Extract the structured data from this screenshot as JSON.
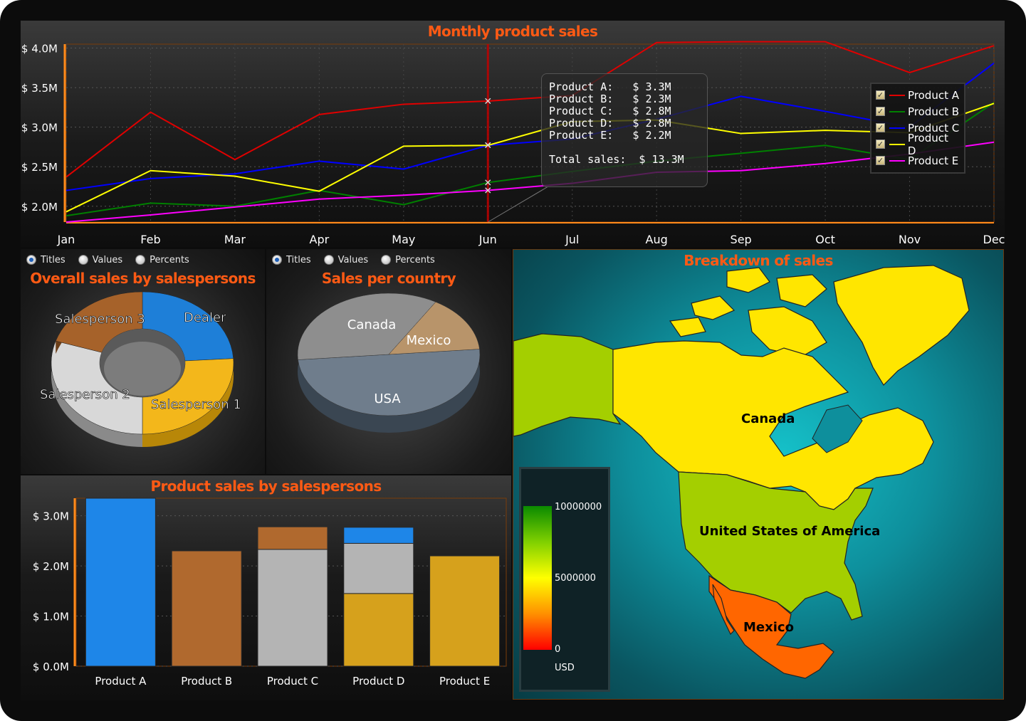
{
  "colors": {
    "title": "#ff5a14",
    "product_a": "#e00000",
    "product_b": "#008000",
    "product_c": "#0000ff",
    "product_d": "#ffff00",
    "product_e": "#ff00ff"
  },
  "line_chart": {
    "title": "Monthly product sales",
    "legend": [
      "Product A",
      "Product B",
      "Product C",
      "Product D",
      "Product E"
    ],
    "tooltip": {
      "lines": [
        "Product A:   $ 3.3M",
        "Product B:   $ 2.3M",
        "Product C:   $ 2.8M",
        "Product D:   $ 2.8M",
        "Product E:   $ 2.2M"
      ],
      "total": "Total sales:  $ 13.3M"
    },
    "y_ticks": [
      "$ 2.0M",
      "$ 2.5M",
      "$ 3.0M",
      "$ 3.5M",
      "$ 4.0M"
    ]
  },
  "donut": {
    "title": "Overall sales by salespersons",
    "radio": [
      "Titles",
      "Values",
      "Percents"
    ],
    "labels": [
      "Dealer",
      "Salesperson 1",
      "Salesperson 2",
      "Salesperson 3"
    ]
  },
  "pie": {
    "title": "Sales per country",
    "radio": [
      "Titles",
      "Values",
      "Percents"
    ],
    "labels": [
      "USA",
      "Canada",
      "Mexico"
    ]
  },
  "bars": {
    "title": "Product sales by salespersons",
    "y_ticks": [
      "$ 0.0M",
      "$ 1.0M",
      "$ 2.0M",
      "$ 3.0M"
    ]
  },
  "map": {
    "title": "Breakdown of sales",
    "countries": [
      "Canada",
      "United States of America",
      "Mexico"
    ],
    "scale_labels": [
      "10000000",
      "5000000",
      "0"
    ],
    "unit": "USD"
  },
  "chart_data": [
    {
      "type": "line",
      "title": "Monthly product sales",
      "categories": [
        "Jan",
        "Feb",
        "Mar",
        "Apr",
        "May",
        "Jun",
        "Jul",
        "Aug",
        "Sep",
        "Oct",
        "Nov",
        "Dec"
      ],
      "ylim": [
        1.8,
        4.05
      ],
      "grid": true,
      "legend_position": "top-right",
      "series": [
        {
          "name": "Product A",
          "values": [
            2.37,
            3.19,
            2.59,
            3.16,
            3.29,
            3.33,
            3.4,
            4.07,
            4.08,
            4.08,
            3.69,
            4.03
          ]
        },
        {
          "name": "Product B",
          "values": [
            1.88,
            2.04,
            2.0,
            2.2,
            2.02,
            2.3,
            2.44,
            2.57,
            2.67,
            2.77,
            2.59,
            3.31
          ]
        },
        {
          "name": "Product C",
          "values": [
            2.2,
            2.35,
            2.41,
            2.57,
            2.47,
            2.77,
            2.85,
            3.1,
            3.39,
            3.2,
            3.0,
            3.81
          ]
        },
        {
          "name": "Product D",
          "values": [
            1.93,
            2.45,
            2.38,
            2.19,
            2.76,
            2.77,
            3.07,
            3.09,
            2.92,
            2.96,
            2.93,
            3.3
          ]
        },
        {
          "name": "Product E",
          "values": [
            1.8,
            1.89,
            1.99,
            2.09,
            2.14,
            2.2,
            2.29,
            2.43,
            2.45,
            2.54,
            2.66,
            2.81
          ]
        }
      ]
    },
    {
      "type": "pie",
      "title": "Overall sales by salespersons",
      "categories": [
        "Dealer",
        "Salesperson 1",
        "Salesperson 2",
        "Salesperson 3"
      ],
      "values": [
        24,
        26,
        30,
        20
      ]
    },
    {
      "type": "pie",
      "title": "Sales per country",
      "categories": [
        "USA",
        "Canada",
        "Mexico"
      ],
      "values": [
        50,
        35,
        15
      ]
    },
    {
      "type": "bar",
      "title": "Product sales by salespersons",
      "categories": [
        "Product A",
        "Product B",
        "Product C",
        "Product D",
        "Product E"
      ],
      "ylim": [
        0,
        3.35
      ],
      "series": [
        {
          "name": "Dealer",
          "values": [
            3.4,
            0,
            0,
            0.32,
            0
          ]
        },
        {
          "name": "Salesperson 1",
          "values": [
            0,
            0,
            0,
            1.45,
            2.2
          ]
        },
        {
          "name": "Salesperson 2",
          "values": [
            0,
            0,
            2.33,
            1.0,
            0
          ]
        },
        {
          "name": "Salesperson 3",
          "values": [
            0,
            2.3,
            0.45,
            0,
            0
          ]
        }
      ]
    }
  ]
}
